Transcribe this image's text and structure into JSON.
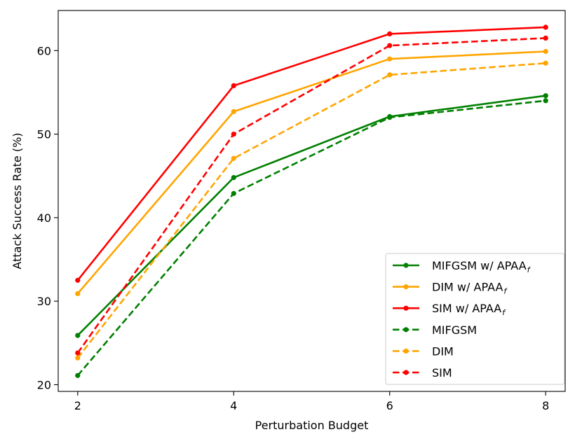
{
  "chart_data": {
    "type": "line",
    "title": "",
    "xlabel": "Perturbation Budget",
    "ylabel": "Attack Success Rate (%)",
    "x": [
      2,
      4,
      6,
      8
    ],
    "xlim": [
      1.75,
      8.25
    ],
    "ylim": [
      19.2,
      64.8
    ],
    "xticks": [
      "2",
      "4",
      "6",
      "8"
    ],
    "xtick_values": [
      2,
      4,
      6,
      8
    ],
    "yticks": [
      "20",
      "30",
      "40",
      "50",
      "60"
    ],
    "ytick_values": [
      20,
      30,
      40,
      50,
      60
    ],
    "grid": false,
    "legend_position": "lower-right",
    "series": [
      {
        "name": "MIFGSM w/ APAA",
        "subscript": "f",
        "color": "#008000",
        "style": "solid",
        "values": [
          25.9,
          44.8,
          52.1,
          54.6
        ]
      },
      {
        "name": "DIM w/ APAA",
        "subscript": "f",
        "color": "#FFA500",
        "style": "solid",
        "values": [
          30.9,
          52.7,
          59.0,
          59.9
        ]
      },
      {
        "name": "SIM w/ APAA",
        "subscript": "f",
        "color": "#FF0000",
        "style": "solid",
        "values": [
          32.5,
          55.8,
          62.0,
          62.8
        ]
      },
      {
        "name": "MIFGSM",
        "subscript": "",
        "color": "#008000",
        "style": "dashed",
        "values": [
          21.1,
          42.9,
          52.0,
          54.0
        ]
      },
      {
        "name": "DIM",
        "subscript": "",
        "color": "#FFA500",
        "style": "dashed",
        "values": [
          23.2,
          47.1,
          57.1,
          58.5
        ]
      },
      {
        "name": "SIM",
        "subscript": "",
        "color": "#FF0000",
        "style": "dashed",
        "values": [
          23.8,
          50.0,
          60.6,
          61.5
        ]
      }
    ]
  }
}
